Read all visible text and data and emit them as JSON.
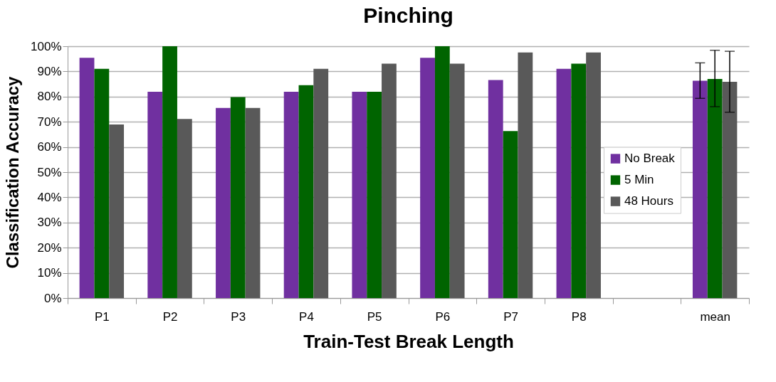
{
  "chart_data": {
    "type": "bar",
    "title": "Pinching",
    "xlabel": "Train-Test Break Length",
    "ylabel": "Classification Accuracy",
    "categories": [
      "P1",
      "P2",
      "P3",
      "P4",
      "P5",
      "P6",
      "P7",
      "P8",
      null,
      "mean"
    ],
    "series": [
      {
        "name": "No Break",
        "color": "#7030a0",
        "values": [
          95.4,
          81.9,
          75.5,
          81.9,
          81.9,
          95.4,
          86.6,
          91.0,
          null,
          86.3
        ],
        "errors": [
          null,
          null,
          null,
          null,
          null,
          null,
          null,
          null,
          null,
          [
            79.3,
            93.4
          ]
        ]
      },
      {
        "name": "5 Min",
        "color": "#006400",
        "values": [
          91.0,
          100,
          79.8,
          84.5,
          81.9,
          100,
          66.3,
          93.1,
          null,
          87.0
        ],
        "errors": [
          null,
          null,
          null,
          null,
          null,
          null,
          null,
          null,
          null,
          [
            76.0,
            98.4
          ]
        ]
      },
      {
        "name": "48 Hours",
        "color": "#595959",
        "values": [
          68.9,
          71.1,
          75.5,
          91.0,
          93.1,
          93.1,
          97.5,
          97.5,
          null,
          85.9
        ],
        "errors": [
          null,
          null,
          null,
          null,
          null,
          null,
          null,
          null,
          null,
          [
            73.8,
            98.0
          ]
        ]
      }
    ],
    "ylim": [
      0,
      100
    ],
    "yticks": [
      {
        "value": 0,
        "label": "0%"
      },
      {
        "value": 10,
        "label": "10%"
      },
      {
        "value": 20,
        "label": "20%"
      },
      {
        "value": 30,
        "label": "30%"
      },
      {
        "value": 40,
        "label": "40%"
      },
      {
        "value": 50,
        "label": "50%"
      },
      {
        "value": 60,
        "label": "60%"
      },
      {
        "value": 70,
        "label": "70%"
      },
      {
        "value": 80,
        "label": "80%"
      },
      {
        "value": 90,
        "label": "90%"
      },
      {
        "value": 100,
        "label": "100%"
      }
    ],
    "grid": "y",
    "legend": "right"
  }
}
